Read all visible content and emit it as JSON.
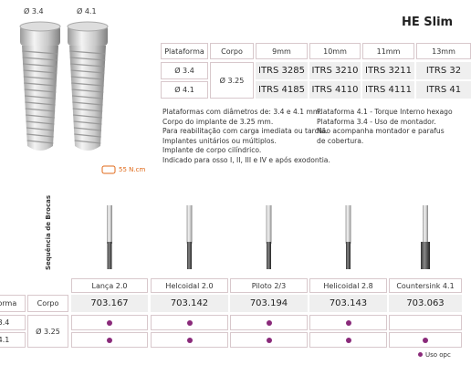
{
  "implant_labels": [
    "Ø 3.4",
    "Ø 4.1"
  ],
  "title": "HE Slim",
  "spec_table": {
    "header": [
      "Plataforma",
      "Corpo",
      "9mm",
      "10mm",
      "11mm",
      "13mm"
    ],
    "body": "Ø 3.25",
    "rows": [
      [
        "Ø 3.4",
        "ITRS 3285",
        "ITRS 3210",
        "ITRS 3211",
        "ITRS 32"
      ],
      [
        "Ø 4.1",
        "ITRS 4185",
        "ITRS 4110",
        "ITRS 4111",
        "ITRS 41"
      ]
    ]
  },
  "description_left": [
    "Plataformas com diâmetros de: 3.4 e 4.1 mm.",
    "Corpo do implante de 3.25 mm.",
    "Para reabilitação com carga imediata ou tardia.",
    "Implantes unitários ou múltiplos.",
    "Implante de corpo cilíndrico.",
    "Indicado para osso I, II, III e IV e após exodontia."
  ],
  "description_right": [
    "Plataforma 4.1 - Torque Interno hexago",
    "Plataforma 3.4 - Uso de montador.",
    "Não acompanha montador e parafus",
    "de cobertura."
  ],
  "torque": "55 N.cm",
  "drill_section": {
    "title": "Sequência de Brocas",
    "header": [
      "aforma",
      "Corpo"
    ],
    "body": "Ø 3.25",
    "drills": [
      {
        "name": "Lança 2.0",
        "code": "703.167"
      },
      {
        "name": "Helcoidal 2.0",
        "code": "703.142"
      },
      {
        "name": "Piloto 2/3",
        "code": "703.194"
      },
      {
        "name": "Helicoidal 2.8",
        "code": "703.143"
      },
      {
        "name": "Countersink 4.1",
        "code": "703.063"
      }
    ],
    "rows": [
      {
        "platform": "3.4",
        "uses": [
          true,
          true,
          true,
          true,
          false
        ]
      },
      {
        "platform": "4.1",
        "uses": [
          true,
          true,
          true,
          true,
          true
        ]
      }
    ]
  },
  "legend": "Uso opc"
}
